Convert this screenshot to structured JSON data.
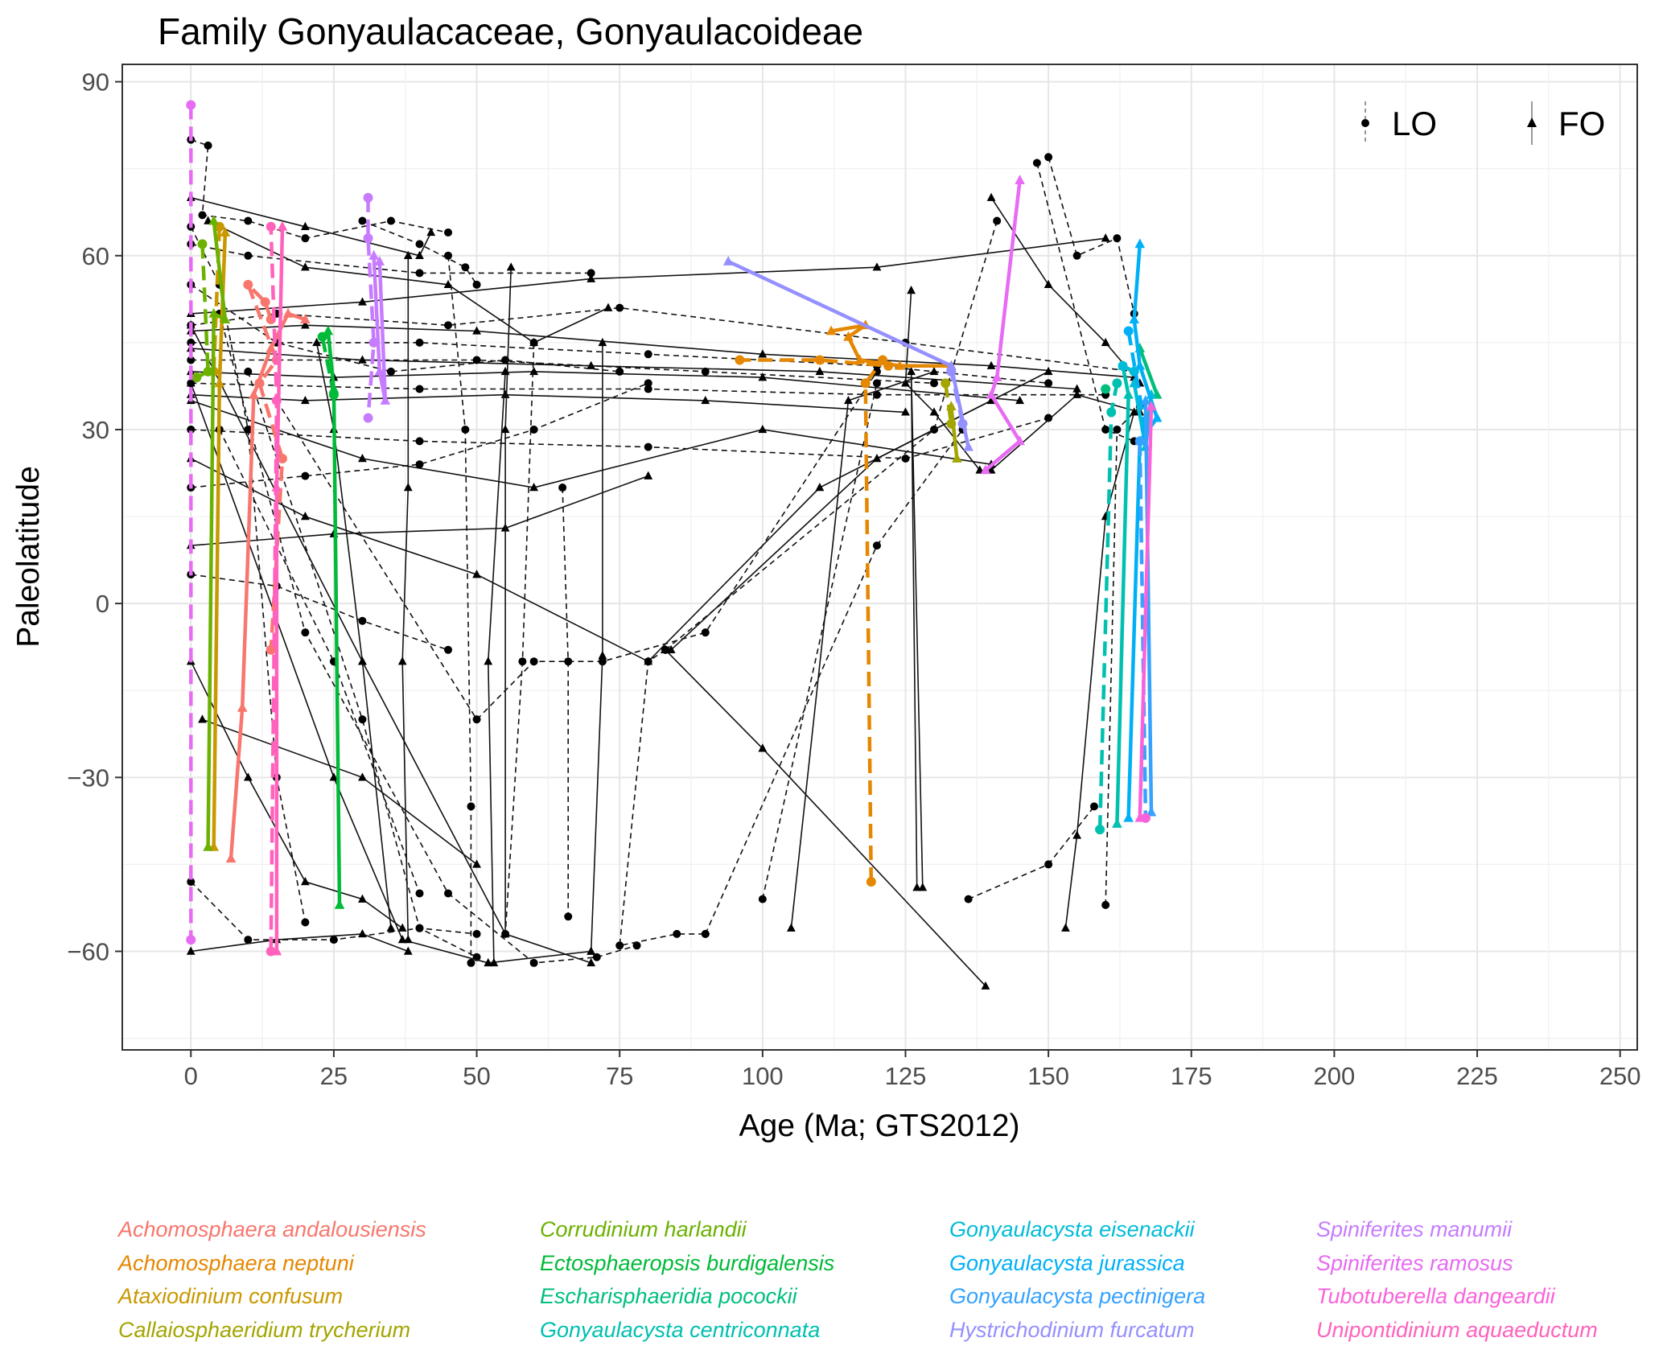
{
  "chart_data": {
    "type": "line",
    "title": "Family Gonyaulacaceae, Gonyaulacoideae",
    "xlabel": "Age (Ma; GTS2012)",
    "ylabel": "Paleolatitude",
    "xlim": [
      -12,
      253
    ],
    "ylim": [
      -77,
      93
    ],
    "xticks": [
      "0",
      "25",
      "50",
      "75",
      "100",
      "125",
      "150",
      "175",
      "200",
      "225",
      "250"
    ],
    "yticks": [
      "90",
      "60",
      "30",
      "0",
      "−30",
      "−60"
    ],
    "grid": true,
    "legend_position": "top-right",
    "event_legend": [
      {
        "label": "LO",
        "shape": "circle",
        "linetype": "dashed"
      },
      {
        "label": "FO",
        "shape": "triangle",
        "linetype": "solid"
      }
    ],
    "series": [
      {
        "name": "Achomosphaera andalousiensis",
        "color": "#F8766D",
        "LO": [
          [
            14,
            49
          ],
          [
            13,
            52
          ],
          [
            10,
            55
          ],
          [
            15,
            42
          ],
          [
            12,
            38
          ],
          [
            16,
            25
          ],
          [
            14,
            -8
          ]
        ],
        "FO": [
          [
            20,
            49
          ],
          [
            17,
            50
          ],
          [
            14,
            44
          ],
          [
            11,
            36
          ],
          [
            9,
            -18
          ],
          [
            7,
            -44
          ]
        ]
      },
      {
        "name": "Achomosphaera neptuni",
        "color": "#E58700",
        "LO": [
          [
            119,
            -48
          ],
          [
            118,
            38
          ],
          [
            121,
            42
          ],
          [
            122,
            41
          ],
          [
            110,
            42
          ],
          [
            96,
            42
          ]
        ],
        "FO": [
          [
            133,
            41
          ],
          [
            124,
            41
          ],
          [
            117,
            42
          ],
          [
            115,
            46
          ],
          [
            118,
            48
          ],
          [
            112,
            47
          ]
        ]
      },
      {
        "name": "Ataxiodinium confusum",
        "color": "#C99800",
        "LO": [
          [
            5,
            65
          ],
          [
            4,
            40
          ]
        ],
        "FO": [
          [
            4,
            -42
          ],
          [
            5,
            38
          ],
          [
            6,
            64
          ]
        ]
      },
      {
        "name": "Callaiosphaeridium trycherium",
        "color": "#A3A500",
        "LO": [
          [
            132,
            38
          ],
          [
            133,
            31
          ]
        ],
        "FO": [
          [
            134,
            25
          ],
          [
            133,
            34
          ]
        ]
      },
      {
        "name": "Corrudinium harlandii",
        "color": "#6BB100",
        "LO": [
          [
            2,
            62
          ],
          [
            3,
            40
          ],
          [
            1,
            39
          ]
        ],
        "FO": [
          [
            3,
            -42
          ],
          [
            4,
            50
          ],
          [
            6,
            49
          ],
          [
            4,
            66
          ]
        ]
      },
      {
        "name": "Ectosphaeropsis burdigalensis",
        "color": "#00BA38",
        "LO": [
          [
            25,
            36
          ],
          [
            23,
            46
          ]
        ],
        "FO": [
          [
            26,
            -52
          ],
          [
            25,
            37
          ],
          [
            24,
            47
          ]
        ]
      },
      {
        "name": "Escharisphaeridia pocockii",
        "color": "#00BF7D",
        "LO": [
          [
            160,
            37
          ]
        ],
        "FO": [
          [
            169,
            36
          ],
          [
            166,
            44
          ]
        ]
      },
      {
        "name": "Gonyaulacysta centriconnata",
        "color": "#00C0AF",
        "LO": [
          [
            159,
            -39
          ],
          [
            161,
            33
          ],
          [
            162,
            38
          ]
        ],
        "FO": [
          [
            162,
            -38
          ],
          [
            164,
            36
          ],
          [
            163,
            41
          ]
        ]
      },
      {
        "name": "Gonyaulacysta eisenackii",
        "color": "#00BCD8",
        "LO": [
          [
            163,
            41
          ],
          [
            165,
            40
          ]
        ],
        "FO": [
          [
            165,
            38
          ],
          [
            167,
            27
          ],
          [
            168,
            36
          ]
        ]
      },
      {
        "name": "Gonyaulacysta jurassica",
        "color": "#00B0F6",
        "LO": [
          [
            164,
            47
          ],
          [
            167,
            30
          ]
        ],
        "FO": [
          [
            164,
            -37
          ],
          [
            166,
            28
          ],
          [
            169,
            32
          ],
          [
            166,
            41
          ],
          [
            165,
            49
          ],
          [
            166,
            62
          ]
        ]
      },
      {
        "name": "Gonyaulacysta pectinigera",
        "color": "#35A2FF",
        "LO": [
          [
            166,
            28
          ],
          [
            167,
            -37
          ]
        ],
        "FO": [
          [
            167,
            35
          ],
          [
            168,
            -36
          ]
        ]
      },
      {
        "name": "Hystrichodinium furcatum",
        "color": "#9590FF",
        "LO": [
          [
            135,
            31
          ],
          [
            133,
            40
          ]
        ],
        "FO": [
          [
            94,
            59
          ],
          [
            133,
            41
          ],
          [
            136,
            27
          ]
        ]
      },
      {
        "name": "Spiniferites manumii",
        "color": "#C77CFF",
        "LO": [
          [
            31,
            70
          ],
          [
            31,
            63
          ],
          [
            32,
            45
          ],
          [
            31,
            32
          ]
        ],
        "FO": [
          [
            32,
            60
          ],
          [
            33,
            40
          ],
          [
            34,
            35
          ],
          [
            33,
            59
          ]
        ]
      },
      {
        "name": "Spiniferites ramosus",
        "color": "#E76BF3",
        "LO": [
          [
            0,
            86
          ],
          [
            0,
            -58
          ]
        ],
        "FO": [
          [
            139,
            23
          ],
          [
            145,
            28
          ],
          [
            140,
            36
          ],
          [
            141,
            39
          ],
          [
            145,
            73
          ]
        ]
      },
      {
        "name": "Tubotuberella dangeardii",
        "color": "#FA62DB",
        "LO": [
          [
            167,
            -37
          ]
        ],
        "FO": [
          [
            166,
            -37
          ],
          [
            168,
            34
          ]
        ]
      },
      {
        "name": "Unipontidinium aquaeductum",
        "color": "#FF62BC",
        "LO": [
          [
            14,
            -60
          ],
          [
            15,
            35
          ],
          [
            14,
            65
          ]
        ],
        "FO": [
          [
            15,
            -60
          ],
          [
            15,
            20
          ],
          [
            16,
            65
          ]
        ]
      }
    ]
  },
  "background_traces": [
    [
      [
        0,
        80
      ],
      [
        3,
        79
      ],
      [
        2,
        67
      ],
      [
        10,
        66
      ],
      [
        20,
        63
      ],
      [
        35,
        66
      ],
      [
        45,
        64
      ]
    ],
    [
      [
        0,
        47
      ],
      [
        20,
        48
      ],
      [
        50,
        47
      ],
      [
        100,
        43
      ],
      [
        140,
        41
      ],
      [
        165,
        39
      ]
    ],
    [
      [
        0,
        45
      ],
      [
        40,
        45
      ],
      [
        80,
        43
      ],
      [
        120,
        41
      ],
      [
        150,
        38
      ]
    ],
    [
      [
        0,
        44
      ],
      [
        30,
        42
      ],
      [
        70,
        41
      ],
      [
        110,
        40
      ],
      [
        155,
        37
      ]
    ],
    [
      [
        0,
        42
      ],
      [
        50,
        42
      ],
      [
        90,
        40
      ],
      [
        130,
        38
      ]
    ],
    [
      [
        0,
        40
      ],
      [
        25,
        39
      ],
      [
        60,
        40
      ],
      [
        100,
        39
      ],
      [
        145,
        35
      ]
    ],
    [
      [
        0,
        38
      ],
      [
        40,
        37
      ],
      [
        80,
        37
      ],
      [
        120,
        36
      ],
      [
        160,
        36
      ]
    ],
    [
      [
        0,
        36
      ],
      [
        20,
        35
      ],
      [
        55,
        36
      ],
      [
        90,
        35
      ],
      [
        125,
        33
      ]
    ],
    [
      [
        0,
        48
      ],
      [
        15,
        50
      ],
      [
        45,
        48
      ],
      [
        75,
        51
      ],
      [
        125,
        45
      ],
      [
        165,
        40
      ]
    ],
    [
      [
        0,
        50
      ],
      [
        30,
        52
      ],
      [
        70,
        56
      ],
      [
        120,
        58
      ],
      [
        160,
        63
      ]
    ],
    [
      [
        0,
        62
      ],
      [
        10,
        60
      ],
      [
        40,
        57
      ],
      [
        70,
        57
      ]
    ],
    [
      [
        0,
        35
      ],
      [
        30,
        25
      ],
      [
        60,
        20
      ],
      [
        100,
        30
      ],
      [
        140,
        24
      ]
    ],
    [
      [
        0,
        30
      ],
      [
        40,
        28
      ],
      [
        80,
        27
      ],
      [
        125,
        25
      ],
      [
        150,
        32
      ]
    ],
    [
      [
        3,
        66
      ],
      [
        20,
        58
      ],
      [
        45,
        55
      ],
      [
        60,
        45
      ],
      [
        73,
        51
      ]
    ],
    [
      [
        0,
        55
      ],
      [
        15,
        45
      ],
      [
        35,
        40
      ],
      [
        55,
        42
      ],
      [
        75,
        40
      ]
    ],
    [
      [
        0,
        25
      ],
      [
        20,
        15
      ],
      [
        50,
        5
      ],
      [
        80,
        -10
      ],
      [
        110,
        20
      ],
      [
        150,
        40
      ]
    ],
    [
      [
        5,
        50
      ],
      [
        20,
        -5
      ],
      [
        45,
        -50
      ],
      [
        60,
        -62
      ],
      [
        71,
        -61
      ],
      [
        78,
        -59
      ]
    ],
    [
      [
        0,
        48
      ],
      [
        30,
        -10
      ],
      [
        55,
        -57
      ],
      [
        70,
        -62
      ]
    ],
    [
      [
        10,
        40
      ],
      [
        30,
        -20
      ],
      [
        40,
        -56
      ],
      [
        50,
        -61
      ]
    ],
    [
      [
        0,
        38
      ],
      [
        25,
        -30
      ],
      [
        37,
        -58
      ],
      [
        52,
        -62
      ],
      [
        70,
        -60
      ]
    ],
    [
      [
        15,
        35
      ],
      [
        50,
        -20
      ],
      [
        60,
        -10
      ],
      [
        72,
        -10
      ],
      [
        90,
        -5
      ],
      [
        120,
        40
      ]
    ],
    [
      [
        0,
        -10
      ],
      [
        10,
        -30
      ],
      [
        20,
        -48
      ],
      [
        30,
        -51
      ],
      [
        37,
        -56
      ]
    ],
    [
      [
        0,
        -48
      ],
      [
        10,
        -58
      ],
      [
        25,
        -58
      ],
      [
        40,
        -56
      ],
      [
        50,
        -57
      ]
    ],
    [
      [
        0,
        -60
      ],
      [
        15,
        -58
      ],
      [
        30,
        -57
      ],
      [
        38,
        -60
      ]
    ],
    [
      [
        60,
        45
      ],
      [
        58,
        -10
      ],
      [
        55,
        -57
      ]
    ],
    [
      [
        72,
        45
      ],
      [
        72,
        -9
      ],
      [
        70,
        -60
      ]
    ],
    [
      [
        83,
        -8
      ],
      [
        80,
        -10
      ],
      [
        75,
        -59
      ],
      [
        85,
        -57
      ],
      [
        90,
        -57
      ]
    ],
    [
      [
        83,
        -8
      ],
      [
        100,
        -25
      ],
      [
        139,
        -66
      ]
    ],
    [
      [
        83,
        -8
      ],
      [
        130,
        30
      ],
      [
        141,
        66
      ]
    ],
    [
      [
        84,
        -8
      ],
      [
        120,
        25
      ],
      [
        140,
        35
      ]
    ],
    [
      [
        90,
        -57
      ],
      [
        120,
        10
      ],
      [
        135,
        30
      ]
    ],
    [
      [
        127,
        -49
      ],
      [
        126,
        40
      ],
      [
        128,
        -49
      ]
    ],
    [
      [
        136,
        -51
      ],
      [
        150,
        -45
      ],
      [
        158,
        -35
      ]
    ],
    [
      [
        153,
        -56
      ],
      [
        155,
        -40
      ],
      [
        160,
        15
      ],
      [
        165,
        33
      ]
    ],
    [
      [
        150,
        77
      ],
      [
        155,
        60
      ],
      [
        162,
        63
      ],
      [
        165,
        50
      ]
    ],
    [
      [
        140,
        70
      ],
      [
        150,
        55
      ],
      [
        160,
        45
      ],
      [
        166,
        38
      ]
    ],
    [
      [
        148,
        76
      ],
      [
        160,
        30
      ],
      [
        165,
        28
      ]
    ],
    [
      [
        126,
        54
      ],
      [
        125,
        38
      ],
      [
        130,
        33
      ],
      [
        138,
        23
      ]
    ],
    [
      [
        160,
        -52
      ],
      [
        162,
        30
      ],
      [
        166,
        34
      ]
    ],
    [
      [
        105,
        -56
      ],
      [
        115,
        35
      ],
      [
        130,
        40
      ]
    ],
    [
      [
        100,
        -51
      ],
      [
        120,
        38
      ]
    ],
    [
      [
        140,
        23
      ],
      [
        155,
        36
      ],
      [
        166,
        33
      ]
    ],
    [
      [
        0,
        20
      ],
      [
        20,
        22
      ],
      [
        40,
        24
      ],
      [
        60,
        30
      ],
      [
        80,
        38
      ]
    ],
    [
      [
        0,
        10
      ],
      [
        25,
        12
      ],
      [
        55,
        13
      ],
      [
        80,
        22
      ]
    ],
    [
      [
        0,
        5
      ],
      [
        15,
        3
      ],
      [
        30,
        -3
      ],
      [
        45,
        -8
      ]
    ],
    [
      [
        2,
        -20
      ],
      [
        30,
        -30
      ],
      [
        50,
        -45
      ]
    ],
    [
      [
        0,
        65
      ],
      [
        5,
        55
      ],
      [
        10,
        30
      ],
      [
        15,
        -30
      ],
      [
        20,
        -55
      ]
    ],
    [
      [
        22,
        45
      ],
      [
        25,
        30
      ],
      [
        30,
        -10
      ],
      [
        35,
        -56
      ]
    ],
    [
      [
        45,
        60
      ],
      [
        48,
        30
      ],
      [
        49,
        -35
      ],
      [
        49,
        -62
      ]
    ],
    [
      [
        56,
        58
      ],
      [
        55,
        30
      ],
      [
        55,
        -57
      ]
    ],
    [
      [
        65,
        20
      ],
      [
        66,
        -10
      ],
      [
        66,
        -54
      ]
    ],
    [
      [
        38,
        60
      ],
      [
        38,
        20
      ],
      [
        37,
        -10
      ],
      [
        38,
        -58
      ]
    ],
    [
      [
        5,
        30
      ],
      [
        25,
        -10
      ],
      [
        40,
        -50
      ]
    ],
    [
      [
        0,
        70
      ],
      [
        20,
        65
      ],
      [
        40,
        60
      ],
      [
        42,
        64
      ]
    ],
    [
      [
        30,
        66
      ],
      [
        40,
        62
      ],
      [
        48,
        58
      ],
      [
        50,
        55
      ]
    ],
    [
      [
        55,
        40
      ],
      [
        52,
        -10
      ],
      [
        53,
        -62
      ]
    ]
  ]
}
